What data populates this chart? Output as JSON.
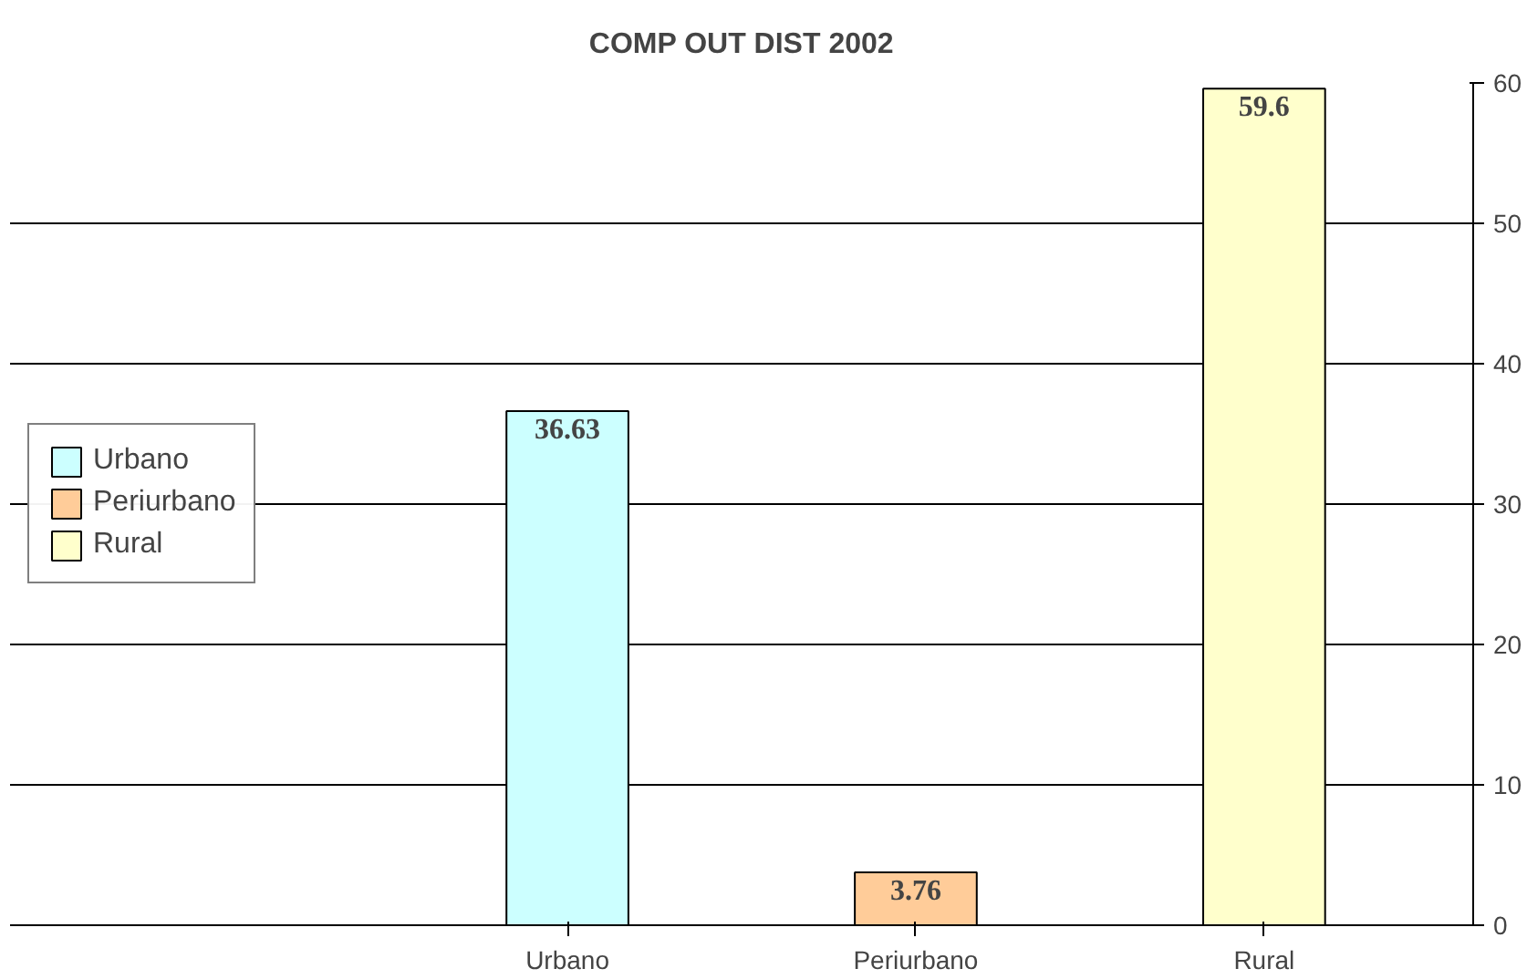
{
  "chart_data": {
    "type": "bar",
    "title": "COMP OUT DIST 2002",
    "categories": [
      "Urbano",
      "Periurbano",
      "Rural"
    ],
    "series": [
      {
        "name": "Urbano",
        "color": "#ccffff",
        "values": [
          36.63,
          null,
          null
        ]
      },
      {
        "name": "Periurbano",
        "color": "#ffcc99",
        "values": [
          null,
          3.76,
          null
        ]
      },
      {
        "name": "Rural",
        "color": "#ffffcc",
        "values": [
          null,
          null,
          59.6
        ]
      }
    ],
    "ylim": [
      0,
      60
    ],
    "yticks": [
      0,
      10,
      20,
      30,
      40,
      50,
      60
    ],
    "grid": "y",
    "legend": "left",
    "data_labels": true
  }
}
